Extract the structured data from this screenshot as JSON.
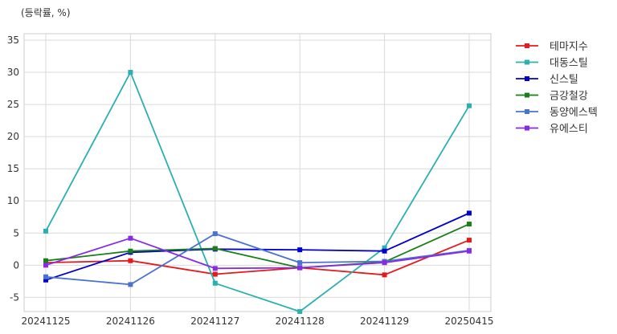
{
  "chart_data": {
    "type": "line",
    "unit_label": "(등락률, %)",
    "categories": [
      "20241125",
      "20241126",
      "20241127",
      "20241128",
      "20241129",
      "20250415"
    ],
    "ylim": [
      -7.2,
      36
    ],
    "yticks": [
      -5,
      0,
      5,
      10,
      15,
      20,
      25,
      30,
      35
    ],
    "grid": true,
    "legend_position": "right",
    "series": [
      {
        "name": "테마지수",
        "color": "#e41a1c",
        "values": [
          0.4,
          0.7,
          -1.4,
          -0.4,
          -1.5,
          3.9
        ]
      },
      {
        "name": "대동스틸",
        "color": "#2ab0b0",
        "values": [
          5.3,
          30.0,
          -2.8,
          -7.2,
          2.7,
          24.8
        ]
      },
      {
        "name": "신스틸",
        "color": "#0000cd",
        "values": [
          -2.3,
          2.0,
          2.5,
          2.4,
          2.2,
          8.1
        ]
      },
      {
        "name": "금강철강",
        "color": "#1a7f1a",
        "values": [
          0.7,
          2.2,
          2.6,
          -0.4,
          0.5,
          6.4
        ]
      },
      {
        "name": "동양에스텍",
        "color": "#4a72d0",
        "values": [
          -1.8,
          -3.0,
          4.9,
          0.4,
          0.6,
          2.3
        ]
      },
      {
        "name": "유에스티",
        "color": "#8a2be2",
        "values": [
          0.0,
          4.2,
          -0.5,
          -0.4,
          0.4,
          2.2
        ]
      }
    ]
  }
}
